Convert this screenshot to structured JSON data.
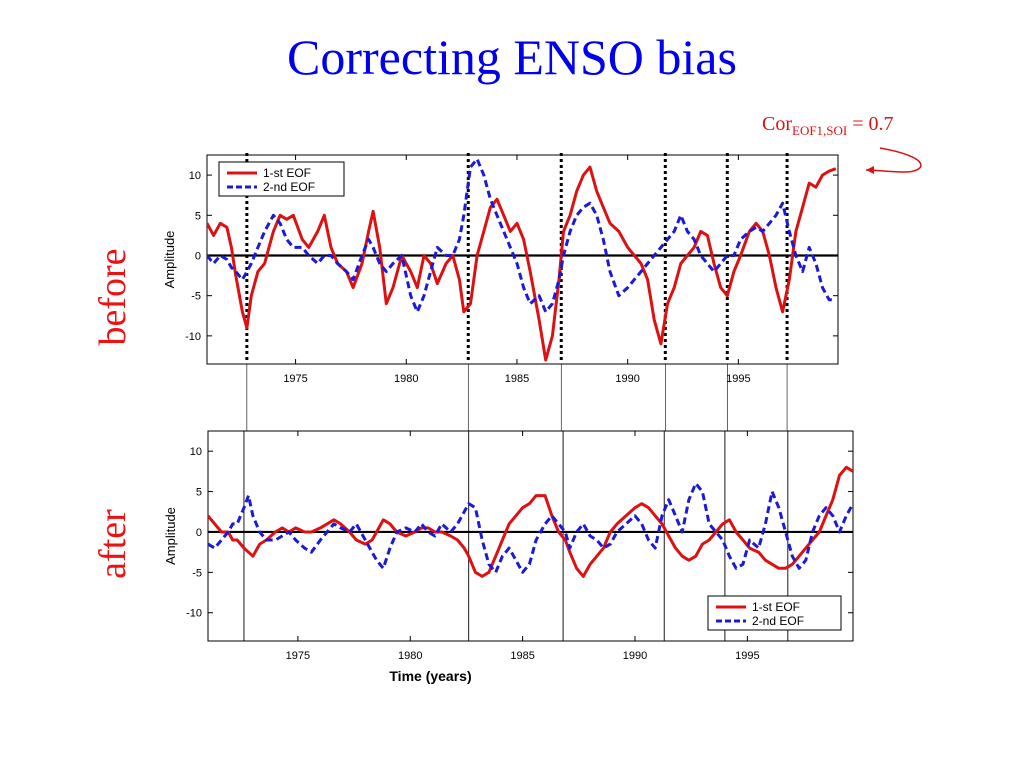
{
  "slide": {
    "title": "Correcting ENSO bias",
    "cor_label": {
      "main": "Cor",
      "sub": "EOF1,SOI",
      "rest": " = 0.7"
    },
    "label_before": "before",
    "label_after": "after"
  },
  "colors": {
    "title": "#0000ee",
    "side_labels": "#ee1111",
    "series1": "#dd1111",
    "series2": "#1a1ad8",
    "zero_line": "#000000"
  },
  "chart_data": [
    {
      "type": "line",
      "panel": "before",
      "xlabel": "",
      "ylabel": "Amplitude",
      "xlim": [
        1971,
        1999.5
      ],
      "ylim": [
        -13.5,
        12.5
      ],
      "xticks": [
        1975,
        1980,
        1985,
        1990,
        1995
      ],
      "yticks": [
        10,
        5,
        0,
        -5,
        -10
      ],
      "legend_position": "top-left",
      "event_lines": [
        1972.8,
        1982.8,
        1987.0,
        1991.7,
        1994.5,
        1997.2
      ],
      "series": [
        {
          "name": "1-st EOF",
          "color": "#dd1111",
          "style": "solid",
          "x": [
            1971.0,
            1971.3,
            1971.6,
            1971.9,
            1972.1,
            1972.3,
            1972.6,
            1972.8,
            1973.0,
            1973.3,
            1973.6,
            1974.0,
            1974.3,
            1974.6,
            1974.9,
            1975.3,
            1975.6,
            1976.0,
            1976.3,
            1976.6,
            1976.9,
            1977.3,
            1977.6,
            1978.0,
            1978.3,
            1978.5,
            1978.8,
            1979.1,
            1979.4,
            1979.8,
            1980.2,
            1980.5,
            1980.8,
            1981.1,
            1981.4,
            1981.8,
            1982.1,
            1982.4,
            1982.6,
            1982.9,
            1983.2,
            1983.5,
            1983.8,
            1984.1,
            1984.4,
            1984.7,
            1985.0,
            1985.3,
            1985.6,
            1986.0,
            1986.3,
            1986.6,
            1986.9,
            1987.1,
            1987.4,
            1987.7,
            1988.0,
            1988.3,
            1988.6,
            1988.9,
            1989.2,
            1989.6,
            1990.0,
            1990.3,
            1990.6,
            1990.9,
            1991.2,
            1991.5,
            1991.8,
            1992.1,
            1992.4,
            1992.7,
            1993.0,
            1993.3,
            1993.6,
            1993.9,
            1994.2,
            1994.5,
            1994.8,
            1995.1,
            1995.5,
            1995.8,
            1996.1,
            1996.4,
            1996.7,
            1997.0,
            1997.3,
            1997.6,
            1997.9,
            1998.2,
            1998.5,
            1998.8,
            1999.1,
            1999.4
          ],
          "y": [
            4,
            2.5,
            4,
            3.5,
            1,
            -2.5,
            -7,
            -9,
            -5,
            -2,
            -1,
            3,
            5,
            4.5,
            5,
            2,
            1,
            3,
            5,
            1,
            -1,
            -2,
            -4,
            -1,
            3,
            5.5,
            1,
            -6,
            -4,
            0,
            -2,
            -4,
            0,
            -1,
            -3.5,
            -1,
            0,
            -3,
            -7,
            -6,
            0,
            3,
            6,
            7,
            5,
            3,
            4,
            2,
            -2,
            -8,
            -13,
            -10,
            -3,
            3,
            5,
            8,
            10,
            11,
            8,
            6,
            4,
            3,
            1,
            0,
            -1,
            -3,
            -8,
            -11,
            -6,
            -4,
            -1,
            0,
            1,
            3,
            2.5,
            -1,
            -4,
            -5,
            -2,
            0,
            3,
            4,
            3,
            0,
            -4,
            -7,
            -3,
            3,
            6,
            9,
            8.5,
            10,
            10.5,
            10.8
          ]
        },
        {
          "name": "2-nd EOF",
          "color": "#1a1ad8",
          "style": "dashed",
          "x": [
            1971.0,
            1971.3,
            1971.6,
            1971.9,
            1972.1,
            1972.3,
            1972.6,
            1972.8,
            1973.0,
            1973.3,
            1973.6,
            1974.0,
            1974.3,
            1974.6,
            1974.9,
            1975.3,
            1975.6,
            1976.0,
            1976.3,
            1976.6,
            1976.9,
            1977.3,
            1977.6,
            1978.0,
            1978.3,
            1978.5,
            1978.8,
            1979.1,
            1979.4,
            1979.8,
            1980.2,
            1980.5,
            1980.8,
            1981.1,
            1981.4,
            1981.8,
            1982.1,
            1982.4,
            1982.6,
            1982.9,
            1983.2,
            1983.5,
            1983.8,
            1984.1,
            1984.4,
            1984.7,
            1985.0,
            1985.3,
            1985.6,
            1986.0,
            1986.3,
            1986.6,
            1986.9,
            1987.1,
            1987.4,
            1987.7,
            1988.0,
            1988.3,
            1988.6,
            1988.9,
            1989.2,
            1989.6,
            1990.0,
            1990.3,
            1990.6,
            1990.9,
            1991.2,
            1991.5,
            1991.8,
            1992.1,
            1992.4,
            1992.7,
            1993.0,
            1993.3,
            1993.6,
            1993.9,
            1994.2,
            1994.5,
            1994.8,
            1995.1,
            1995.5,
            1995.8,
            1996.1,
            1996.4,
            1996.7,
            1997.0,
            1997.3,
            1997.6,
            1997.9,
            1998.2,
            1998.5,
            1998.8,
            1999.1,
            1999.4
          ],
          "y": [
            0,
            -1,
            0,
            -0.5,
            -1.5,
            -2,
            -3,
            -2,
            -1,
            1,
            3,
            5,
            4,
            2,
            1,
            1,
            0,
            -1,
            0,
            0,
            -1,
            -2,
            -3,
            0,
            2,
            1,
            -1,
            -2,
            -1,
            0,
            -5,
            -7,
            -5,
            -2,
            1,
            0,
            0,
            2,
            5,
            11,
            12,
            10,
            7,
            5,
            3,
            1,
            -1,
            -4,
            -6,
            -5,
            -7,
            -6,
            -3,
            0,
            3,
            5,
            6,
            6.5,
            5,
            2,
            -2,
            -5,
            -4,
            -3,
            -2,
            -1,
            0,
            1,
            2,
            3,
            5,
            3,
            2,
            0,
            -1,
            -2,
            -1,
            0,
            0,
            2,
            3,
            3.5,
            3,
            4,
            5,
            6.5,
            3,
            0,
            -2,
            1,
            -1,
            -4,
            -5.5,
            -5.5
          ]
        }
      ]
    },
    {
      "type": "line",
      "panel": "after",
      "xlabel": "Time (years)",
      "ylabel": "Amplitude",
      "xlim": [
        1971,
        1999.7
      ],
      "ylim": [
        -13.5,
        12.5
      ],
      "xticks": [
        1975,
        1980,
        1985,
        1990,
        1995
      ],
      "yticks": [
        10,
        5,
        0,
        -5,
        -10
      ],
      "legend_position": "bottom-right",
      "event_lines": [
        1972.6,
        1982.6,
        1986.8,
        1991.3,
        1994.0,
        1996.8
      ],
      "series": [
        {
          "name": "1-st EOF",
          "color": "#dd1111",
          "style": "solid",
          "x": [
            1971.0,
            1971.3,
            1971.6,
            1971.9,
            1972.1,
            1972.3,
            1972.6,
            1972.8,
            1973.0,
            1973.3,
            1973.6,
            1974.0,
            1974.3,
            1974.6,
            1974.9,
            1975.3,
            1975.6,
            1976.0,
            1976.3,
            1976.6,
            1976.9,
            1977.3,
            1977.6,
            1978.0,
            1978.3,
            1978.5,
            1978.8,
            1979.1,
            1979.4,
            1979.8,
            1980.2,
            1980.5,
            1980.8,
            1981.1,
            1981.4,
            1981.8,
            1982.1,
            1982.4,
            1982.6,
            1982.9,
            1983.2,
            1983.5,
            1983.8,
            1984.1,
            1984.4,
            1984.7,
            1985.0,
            1985.3,
            1985.6,
            1986.0,
            1986.3,
            1986.6,
            1986.9,
            1987.1,
            1987.4,
            1987.7,
            1988.0,
            1988.3,
            1988.6,
            1988.9,
            1989.2,
            1989.6,
            1990.0,
            1990.3,
            1990.6,
            1990.9,
            1991.2,
            1991.5,
            1991.8,
            1992.1,
            1992.4,
            1992.7,
            1993.0,
            1993.3,
            1993.6,
            1993.9,
            1994.2,
            1994.5,
            1994.8,
            1995.1,
            1995.5,
            1995.8,
            1996.1,
            1996.4,
            1996.7,
            1997.0,
            1997.3,
            1997.6,
            1997.9,
            1998.2,
            1998.5,
            1998.8,
            1999.1,
            1999.4,
            1999.7
          ],
          "y": [
            2,
            1,
            0,
            0,
            -1,
            -1,
            -2,
            -2.5,
            -3,
            -1.5,
            -1,
            0,
            0.5,
            0,
            0.5,
            0,
            0,
            0.5,
            1,
            1.5,
            1,
            0,
            -1,
            -1.5,
            -1,
            0,
            1.5,
            1,
            0,
            -0.5,
            0,
            0.5,
            0.5,
            0,
            0,
            -0.5,
            -1,
            -2,
            -3,
            -5,
            -5.5,
            -5,
            -3,
            -1,
            1,
            2,
            3,
            3.5,
            4.5,
            4.5,
            2,
            0,
            -1,
            -2.5,
            -4.5,
            -5.5,
            -4,
            -3,
            -2,
            0,
            1,
            2,
            3,
            3.5,
            3,
            2,
            1,
            -0.5,
            -2,
            -3,
            -3.5,
            -3,
            -1.5,
            -1,
            0,
            1,
            1.5,
            0,
            -1,
            -2,
            -2.5,
            -3.5,
            -4,
            -4.5,
            -4.5,
            -4,
            -3,
            -2,
            -1,
            0,
            2,
            4,
            7,
            8,
            7.5
          ]
        },
        {
          "name": "2-nd EOF",
          "color": "#1a1ad8",
          "style": "dashed",
          "x": [
            1971.0,
            1971.3,
            1971.6,
            1971.9,
            1972.1,
            1972.3,
            1972.6,
            1972.8,
            1973.0,
            1973.3,
            1973.6,
            1974.0,
            1974.3,
            1974.6,
            1974.9,
            1975.3,
            1975.6,
            1976.0,
            1976.3,
            1976.6,
            1976.9,
            1977.3,
            1977.6,
            1978.0,
            1978.3,
            1978.5,
            1978.8,
            1979.1,
            1979.4,
            1979.8,
            1980.2,
            1980.5,
            1980.8,
            1981.1,
            1981.4,
            1981.8,
            1982.1,
            1982.4,
            1982.6,
            1982.9,
            1983.2,
            1983.5,
            1983.8,
            1984.1,
            1984.4,
            1984.7,
            1985.0,
            1985.3,
            1985.6,
            1986.0,
            1986.3,
            1986.6,
            1986.9,
            1987.1,
            1987.4,
            1987.7,
            1988.0,
            1988.3,
            1988.6,
            1988.9,
            1989.2,
            1989.6,
            1990.0,
            1990.3,
            1990.6,
            1990.9,
            1991.2,
            1991.5,
            1991.8,
            1992.1,
            1992.4,
            1992.7,
            1993.0,
            1993.3,
            1993.6,
            1993.9,
            1994.2,
            1994.5,
            1994.8,
            1995.1,
            1995.5,
            1995.8,
            1996.1,
            1996.4,
            1996.7,
            1997.0,
            1997.3,
            1997.6,
            1997.9,
            1998.2,
            1998.5,
            1998.8,
            1999.1,
            1999.4,
            1999.7
          ],
          "y": [
            -1.5,
            -2,
            -1,
            0,
            1,
            1,
            3,
            4.5,
            2,
            0,
            -1,
            -1,
            -0.5,
            0,
            -1,
            -2,
            -2.5,
            -1,
            0,
            1,
            0.5,
            0,
            1,
            -1,
            -2.5,
            -3.5,
            -4.5,
            -2,
            0,
            0.5,
            0,
            1,
            0,
            -0.5,
            1,
            0,
            1,
            2.5,
            3.5,
            3,
            -1,
            -4,
            -5,
            -3,
            -2,
            -3.5,
            -5,
            -4,
            -1,
            1,
            2,
            1,
            0,
            -2,
            0,
            1,
            -0.5,
            -1,
            -2,
            -1.5,
            0,
            1,
            2,
            1,
            -1,
            -2,
            2,
            4,
            2,
            0,
            4,
            6,
            5,
            1,
            0,
            -1,
            -3,
            -4.5,
            -4,
            -1,
            -2,
            1,
            5,
            3,
            0,
            -3,
            -4.5,
            -3.5,
            0,
            2,
            3,
            2,
            0,
            2,
            3.5
          ]
        }
      ]
    }
  ]
}
